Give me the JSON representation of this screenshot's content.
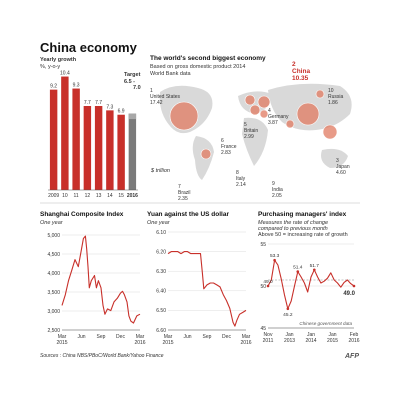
{
  "header": {
    "title": "China economy"
  },
  "chart_data": [
    {
      "type": "bar",
      "subtitle": "Yearly growth",
      "unit": "%, y-o-y",
      "categories": [
        "2009",
        "10",
        "11",
        "12",
        "13",
        "14",
        "15",
        "2016"
      ],
      "values": [
        9.2,
        10.4,
        9.3,
        7.7,
        7.7,
        7.3,
        6.9,
        6.75
      ],
      "labels": [
        "9.2",
        "10.4",
        "9.3",
        "7.7",
        "7.7",
        "7.3",
        "6.9",
        ""
      ],
      "target": {
        "label": "Target",
        "low": 6.5,
        "high": 7.0,
        "text_low": "6.5 -",
        "text_high": "7.0"
      },
      "ylim": [
        0,
        11
      ],
      "bar_color": "#c8302a",
      "target_color": "#7a7a7a"
    },
    {
      "type": "map-bubble",
      "title": "The world's second biggest economy",
      "subtitle": "Based on gross domestic product 2014",
      "source_note": "World Bank data",
      "unit_note": "$ trillion",
      "countries": [
        {
          "rank": "1",
          "name": "United States",
          "value": "17.42"
        },
        {
          "rank": "2",
          "name": "China",
          "value": "10.35"
        },
        {
          "rank": "3",
          "name": "Japan",
          "value": "4.60"
        },
        {
          "rank": "4",
          "name": "Germany",
          "value": "3.87"
        },
        {
          "rank": "5",
          "name": "Britain",
          "value": "2.99"
        },
        {
          "rank": "6",
          "name": "France",
          "value": "2.83"
        },
        {
          "rank": "7",
          "name": "Brazil",
          "value": "2.35"
        },
        {
          "rank": "8",
          "name": "Italy",
          "value": "2.14"
        },
        {
          "rank": "9",
          "name": "India",
          "value": "2.05"
        },
        {
          "rank": "10",
          "name": "Russia",
          "value": "1.86"
        }
      ],
      "bubble_color": "#e07a60"
    },
    {
      "type": "line",
      "title": "Shanghai Composite Index",
      "subtitle": "One year",
      "yticks": [
        "5,000",
        "4,500",
        "4,000",
        "3,500",
        "3,000",
        "2,500"
      ],
      "ylim": [
        2500,
        5200
      ],
      "xticks": [
        "Mar\n2015",
        "Jun",
        "Sep",
        "Dec",
        "Mar\n2016"
      ],
      "x": [
        0,
        0.5,
        1,
        1.5,
        2,
        2.5,
        3,
        3.3,
        3.6,
        3.8,
        4,
        4.2,
        4.5,
        5,
        5.3,
        5.6,
        6,
        6.3,
        6.6,
        7,
        7.5,
        8,
        8.5,
        9,
        9.3,
        9.6,
        10,
        10.3,
        10.6,
        11,
        11.5,
        12
      ],
      "values": [
        3200,
        3500,
        3900,
        4200,
        4500,
        4300,
        4800,
        5100,
        5170,
        4800,
        4300,
        3700,
        3900,
        4050,
        3700,
        3900,
        3700,
        3200,
        2950,
        3100,
        3050,
        3300,
        3400,
        3550,
        3600,
        3500,
        3300,
        2900,
        2750,
        2700,
        2900,
        2950
      ],
      "line_color": "#c8302a"
    },
    {
      "type": "line",
      "title": "Yuan against the US dollar",
      "subtitle": "One year",
      "yticks": [
        "6.10",
        "6.20",
        "6.30",
        "6.40",
        "6.50",
        "6.60"
      ],
      "ylim": [
        6.1,
        6.6
      ],
      "inverted": true,
      "xticks": [
        "Mar\n2015",
        "Jun",
        "Sep",
        "Dec",
        "Mar\n2016"
      ],
      "x": [
        0,
        0.5,
        1,
        1.5,
        2,
        2.5,
        3,
        3.5,
        4,
        4.5,
        5,
        5.3,
        5.5,
        6,
        6.5,
        7,
        7.5,
        8,
        8.5,
        9,
        9.5,
        10,
        10.3,
        10.6,
        11,
        11.5,
        12
      ],
      "values": [
        6.21,
        6.2,
        6.2,
        6.2,
        6.21,
        6.2,
        6.2,
        6.21,
        6.21,
        6.21,
        6.21,
        6.31,
        6.39,
        6.37,
        6.36,
        6.36,
        6.37,
        6.38,
        6.42,
        6.45,
        6.49,
        6.56,
        6.58,
        6.55,
        6.52,
        6.51,
        6.5
      ],
      "line_color": "#c8302a"
    },
    {
      "type": "line",
      "title": "Purchasing managers' index",
      "subtitle_lines": [
        "Measures the rate of change",
        "compared to previous month",
        "Above 50 = increasing rate of growth"
      ],
      "yticks": [
        "55",
        "50",
        "45"
      ],
      "ylim": [
        42,
        56
      ],
      "xticks": [
        "Nov\n2011",
        "Jan\n2013",
        "Jan\n2014",
        "Jan\n2015",
        "Feb\n2016"
      ],
      "x": [
        0,
        1,
        2,
        3,
        4,
        5,
        6,
        7,
        8,
        9,
        10,
        11,
        12,
        13,
        14,
        15,
        16,
        17,
        18,
        19,
        20,
        21,
        22,
        23,
        24,
        25,
        26
      ],
      "values": [
        49.0,
        50.0,
        53.3,
        52.5,
        50.2,
        47.5,
        45.2,
        46.5,
        49.0,
        51.4,
        50.5,
        49.5,
        48.0,
        50.5,
        51.7,
        50.5,
        49.5,
        49.8,
        50.3,
        51.2,
        50.0,
        49.5,
        48.8,
        49.6,
        50.0,
        49.4,
        49.0
      ],
      "annotations": [
        {
          "text": "49.0",
          "i": 0
        },
        {
          "text": "53.3",
          "i": 2
        },
        {
          "text": "45.2",
          "i": 6
        },
        {
          "text": "51.4",
          "i": 9
        },
        {
          "text": "51.7",
          "i": 14
        },
        {
          "text": "49.0",
          "i": 26
        }
      ],
      "reference_line": 50,
      "source_note": "Chinese government data",
      "line_color": "#c8302a"
    }
  ],
  "footer": {
    "sources": "Sources : China NBS/PBoC/World Bank/Yahoo Finance",
    "agency": "AFP"
  }
}
